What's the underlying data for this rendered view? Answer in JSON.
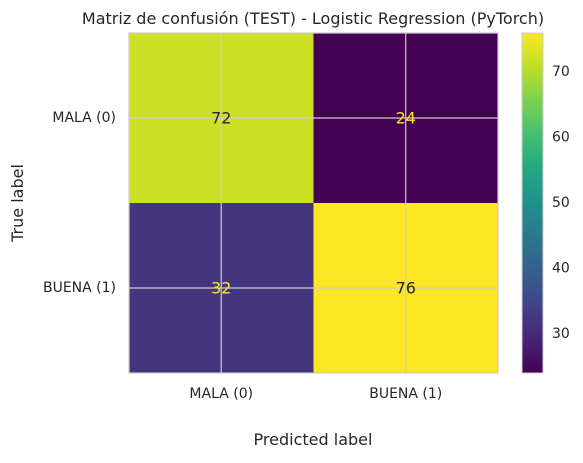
{
  "chart_data": {
    "type": "heatmap",
    "title": "Matriz de confusión (TEST) - Logistic Regression (PyTorch)",
    "xlabel": "Predicted label",
    "ylabel": "True label",
    "x_categories": [
      "MALA (0)",
      "BUENA (1)"
    ],
    "y_categories": [
      "MALA (0)",
      "BUENA (1)"
    ],
    "values": [
      [
        72,
        24
      ],
      [
        32,
        76
      ]
    ],
    "colormap": "viridis",
    "colorbar": {
      "range": [
        24,
        76
      ],
      "ticks": [
        30,
        40,
        50,
        60,
        70
      ]
    },
    "grid": true,
    "text_colors": {
      "dark_cell": "#fde725",
      "light_cell": "#262626"
    }
  }
}
